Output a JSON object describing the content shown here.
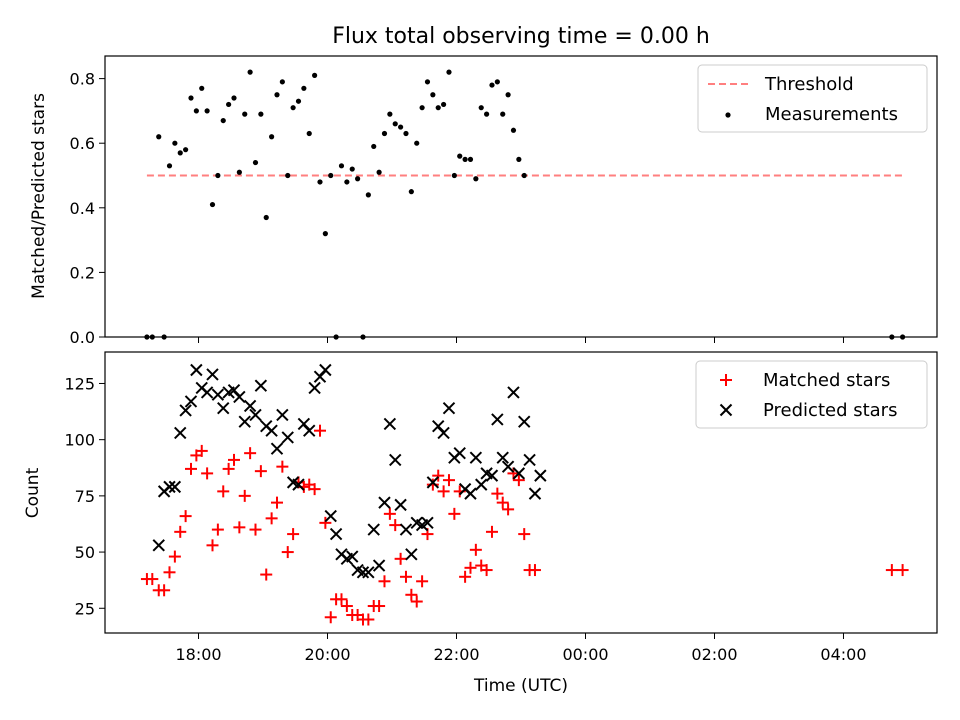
{
  "chart_data": [
    {
      "type": "scatter",
      "title": "Flux total observing time = 0.00 h",
      "ylabel": "Matched/Predicted stars",
      "xlim_hours": [
        16.55,
        29.45
      ],
      "ylim": [
        0,
        0.87
      ],
      "yticks": [
        "0.0",
        "0.2",
        "0.4",
        "0.6",
        "0.8"
      ],
      "legend_position": "upper right",
      "colors": {
        "threshold": "#ff7f7f",
        "measurements": "#000000"
      },
      "threshold": {
        "name": "Threshold",
        "value": 0.5,
        "x_start": "17:12",
        "x_end": "28:55"
      },
      "measurements": {
        "name": "Measurements",
        "points": [
          [
            "17:12",
            0.0
          ],
          [
            "17:17",
            0.0
          ],
          [
            "17:23",
            0.62
          ],
          [
            "17:28",
            0.0
          ],
          [
            "17:33",
            0.53
          ],
          [
            "17:38",
            0.6
          ],
          [
            "17:43",
            0.57
          ],
          [
            "17:48",
            0.58
          ],
          [
            "17:53",
            0.74
          ],
          [
            "17:58",
            0.7
          ],
          [
            "18:03",
            0.77
          ],
          [
            "18:08",
            0.7
          ],
          [
            "18:13",
            0.41
          ],
          [
            "18:18",
            0.5
          ],
          [
            "18:23",
            0.67
          ],
          [
            "18:28",
            0.72
          ],
          [
            "18:33",
            0.74
          ],
          [
            "18:38",
            0.51
          ],
          [
            "18:43",
            0.69
          ],
          [
            "18:48",
            0.82
          ],
          [
            "18:53",
            0.54
          ],
          [
            "18:58",
            0.69
          ],
          [
            "19:03",
            0.37
          ],
          [
            "19:08",
            0.62
          ],
          [
            "19:13",
            0.75
          ],
          [
            "19:18",
            0.79
          ],
          [
            "19:23",
            0.5
          ],
          [
            "19:28",
            0.71
          ],
          [
            "19:33",
            0.73
          ],
          [
            "19:38",
            0.77
          ],
          [
            "19:43",
            0.63
          ],
          [
            "19:48",
            0.81
          ],
          [
            "19:53",
            0.48
          ],
          [
            "19:58",
            0.32
          ],
          [
            "20:03",
            0.5
          ],
          [
            "20:08",
            0.0
          ],
          [
            "20:13",
            0.53
          ],
          [
            "20:18",
            0.48
          ],
          [
            "20:23",
            0.52
          ],
          [
            "20:28",
            0.49
          ],
          [
            "20:33",
            0.0
          ],
          [
            "20:38",
            0.44
          ],
          [
            "20:43",
            0.59
          ],
          [
            "20:48",
            0.51
          ],
          [
            "20:53",
            0.63
          ],
          [
            "20:58",
            0.69
          ],
          [
            "21:03",
            0.66
          ],
          [
            "21:08",
            0.65
          ],
          [
            "21:13",
            0.63
          ],
          [
            "21:18",
            0.45
          ],
          [
            "21:23",
            0.6
          ],
          [
            "21:28",
            0.71
          ],
          [
            "21:33",
            0.79
          ],
          [
            "21:38",
            0.75
          ],
          [
            "21:43",
            0.71
          ],
          [
            "21:48",
            0.72
          ],
          [
            "21:53",
            0.82
          ],
          [
            "21:58",
            0.5
          ],
          [
            "22:03",
            0.56
          ],
          [
            "22:08",
            0.55
          ],
          [
            "22:13",
            0.55
          ],
          [
            "22:18",
            0.49
          ],
          [
            "22:23",
            0.71
          ],
          [
            "22:28",
            0.69
          ],
          [
            "22:33",
            0.78
          ],
          [
            "22:38",
            0.79
          ],
          [
            "22:43",
            0.69
          ],
          [
            "22:48",
            0.75
          ],
          [
            "22:53",
            0.64
          ],
          [
            "22:58",
            0.55
          ],
          [
            "23:03",
            0.5
          ],
          [
            "28:45",
            0.0
          ],
          [
            "28:55",
            0.0
          ]
        ]
      }
    },
    {
      "type": "scatter",
      "xlabel": "Time (UTC)",
      "ylabel": "Count",
      "xlim_hours": [
        16.55,
        29.45
      ],
      "ylim": [
        14,
        139
      ],
      "yticks": [
        "25",
        "50",
        "75",
        "100",
        "125"
      ],
      "xticks": [
        "18:00",
        "20:00",
        "22:00",
        "00:00",
        "02:00",
        "04:00"
      ],
      "legend_position": "upper right",
      "colors": {
        "matched": "#ff0000",
        "predicted": "#000000"
      },
      "series": [
        {
          "name": "Matched stars",
          "marker": "+",
          "points": [
            [
              "17:12",
              38
            ],
            [
              "17:17",
              38
            ],
            [
              "17:23",
              33
            ],
            [
              "17:28",
              33
            ],
            [
              "17:33",
              41
            ],
            [
              "17:38",
              48
            ],
            [
              "17:43",
              59
            ],
            [
              "17:48",
              66
            ],
            [
              "17:53",
              87
            ],
            [
              "17:58",
              93
            ],
            [
              "18:03",
              95
            ],
            [
              "18:08",
              85
            ],
            [
              "18:13",
              53
            ],
            [
              "18:18",
              60
            ],
            [
              "18:23",
              77
            ],
            [
              "18:28",
              87
            ],
            [
              "18:33",
              91
            ],
            [
              "18:38",
              61
            ],
            [
              "18:43",
              75
            ],
            [
              "18:48",
              94
            ],
            [
              "18:53",
              60
            ],
            [
              "18:58",
              86
            ],
            [
              "19:03",
              40
            ],
            [
              "19:08",
              65
            ],
            [
              "19:13",
              72
            ],
            [
              "19:18",
              88
            ],
            [
              "19:23",
              50
            ],
            [
              "19:28",
              58
            ],
            [
              "19:33",
              81
            ],
            [
              "19:38",
              79
            ],
            [
              "19:43",
              80
            ],
            [
              "19:48",
              78
            ],
            [
              "19:53",
              104
            ],
            [
              "19:58",
              63
            ],
            [
              "20:03",
              21
            ],
            [
              "20:08",
              29
            ],
            [
              "20:13",
              29
            ],
            [
              "20:18",
              26
            ],
            [
              "20:23",
              22
            ],
            [
              "20:28",
              22
            ],
            [
              "20:33",
              20
            ],
            [
              "20:38",
              20
            ],
            [
              "20:43",
              26
            ],
            [
              "20:48",
              26
            ],
            [
              "20:53",
              37
            ],
            [
              "20:58",
              67
            ],
            [
              "21:03",
              62
            ],
            [
              "21:08",
              47
            ],
            [
              "21:13",
              39
            ],
            [
              "21:18",
              31
            ],
            [
              "21:23",
              28
            ],
            [
              "21:28",
              37
            ],
            [
              "21:33",
              58
            ],
            [
              "21:38",
              80
            ],
            [
              "21:43",
              84
            ],
            [
              "21:48",
              77
            ],
            [
              "21:53",
              82
            ],
            [
              "21:58",
              67
            ],
            [
              "22:03",
              77
            ],
            [
              "22:08",
              39
            ],
            [
              "22:13",
              43
            ],
            [
              "22:18",
              51
            ],
            [
              "22:23",
              44
            ],
            [
              "22:28",
              42
            ],
            [
              "22:33",
              59
            ],
            [
              "22:38",
              76
            ],
            [
              "22:43",
              72
            ],
            [
              "22:48",
              69
            ],
            [
              "22:53",
              85
            ],
            [
              "22:58",
              82
            ],
            [
              "23:03",
              58
            ],
            [
              "23:08",
              42
            ],
            [
              "23:13",
              42
            ],
            [
              "28:45",
              42
            ],
            [
              "28:55",
              42
            ]
          ]
        },
        {
          "name": "Predicted stars",
          "marker": "x",
          "points": [
            [
              "17:23",
              53
            ],
            [
              "17:28",
              77
            ],
            [
              "17:33",
              79
            ],
            [
              "17:38",
              79
            ],
            [
              "17:43",
              103
            ],
            [
              "17:48",
              113
            ],
            [
              "17:53",
              117
            ],
            [
              "17:58",
              131
            ],
            [
              "18:03",
              123
            ],
            [
              "18:08",
              121
            ],
            [
              "18:13",
              129
            ],
            [
              "18:18",
              120
            ],
            [
              "18:23",
              114
            ],
            [
              "18:28",
              121
            ],
            [
              "18:33",
              122
            ],
            [
              "18:38",
              119
            ],
            [
              "18:43",
              108
            ],
            [
              "18:48",
              115
            ],
            [
              "18:53",
              111
            ],
            [
              "18:58",
              124
            ],
            [
              "19:03",
              106
            ],
            [
              "19:08",
              104
            ],
            [
              "19:13",
              96
            ],
            [
              "19:18",
              111
            ],
            [
              "19:23",
              101
            ],
            [
              "19:28",
              81
            ],
            [
              "19:33",
              80
            ],
            [
              "19:38",
              107
            ],
            [
              "19:43",
              104
            ],
            [
              "19:48",
              123
            ],
            [
              "19:53",
              128
            ],
            [
              "19:58",
              131
            ],
            [
              "20:03",
              66
            ],
            [
              "20:08",
              58
            ],
            [
              "20:13",
              49
            ],
            [
              "20:18",
              47
            ],
            [
              "20:23",
              48
            ],
            [
              "20:28",
              42
            ],
            [
              "20:33",
              41
            ],
            [
              "20:38",
              41
            ],
            [
              "20:43",
              60
            ],
            [
              "20:48",
              44
            ],
            [
              "20:53",
              72
            ],
            [
              "20:58",
              107
            ],
            [
              "21:03",
              91
            ],
            [
              "21:08",
              71
            ],
            [
              "21:13",
              60
            ],
            [
              "21:18",
              49
            ],
            [
              "21:23",
              63
            ],
            [
              "21:28",
              62
            ],
            [
              "21:33",
              63
            ],
            [
              "21:38",
              81
            ],
            [
              "21:43",
              106
            ],
            [
              "21:48",
              103
            ],
            [
              "21:53",
              114
            ],
            [
              "21:58",
              92
            ],
            [
              "22:03",
              94
            ],
            [
              "22:08",
              78
            ],
            [
              "22:13",
              76
            ],
            [
              "22:18",
              92
            ],
            [
              "22:23",
              80
            ],
            [
              "22:28",
              85
            ],
            [
              "22:33",
              84
            ],
            [
              "22:38",
              109
            ],
            [
              "22:43",
              92
            ],
            [
              "22:48",
              88
            ],
            [
              "22:53",
              121
            ],
            [
              "22:58",
              85
            ],
            [
              "23:03",
              108
            ],
            [
              "23:08",
              91
            ],
            [
              "23:13",
              76
            ],
            [
              "23:18",
              84
            ]
          ]
        }
      ]
    }
  ]
}
